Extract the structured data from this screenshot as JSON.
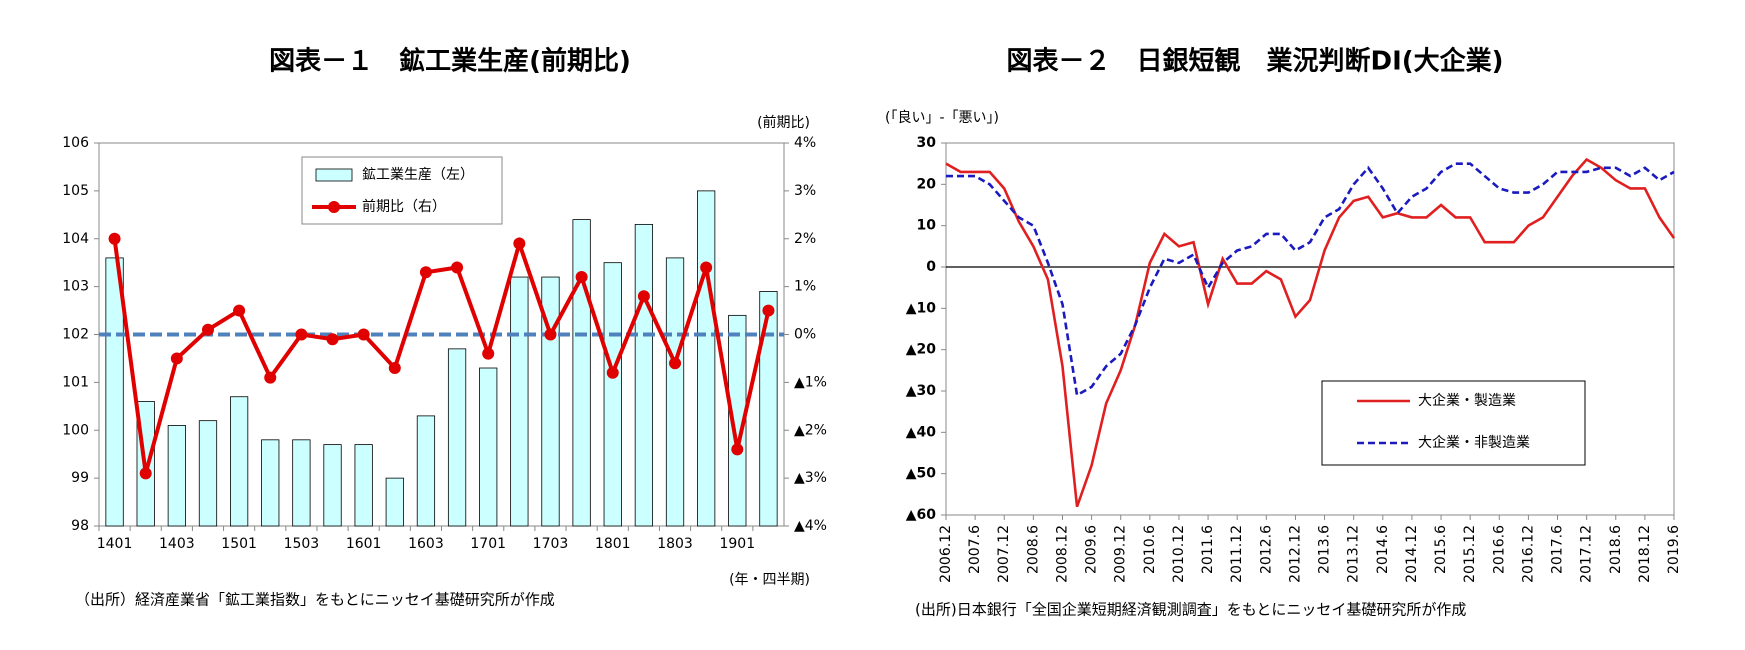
{
  "chart_data": [
    {
      "type": "combo",
      "title": "図表－１　鉱工業生産(前期比)",
      "y2_label": "(前期比)",
      "x_label": "(年・四半期)",
      "note": "（出所）経済産業省「鉱工業指数」をもとにニッセイ基礎研究所が作成",
      "categories": [
        "1401",
        null,
        "1403",
        null,
        "1501",
        null,
        "1503",
        null,
        "1601",
        null,
        "1603",
        null,
        "1701",
        null,
        "1703",
        null,
        "1801",
        null,
        "1803",
        null,
        "1901",
        null
      ],
      "series": [
        {
          "name": "鉱工業生産（左）",
          "type": "bar",
          "color": "#ccffff",
          "axis": "y",
          "values": [
            103.6,
            100.6,
            100.1,
            100.2,
            100.7,
            99.8,
            99.8,
            99.7,
            99.7,
            99.0,
            100.3,
            101.7,
            101.3,
            103.2,
            103.2,
            104.4,
            103.5,
            104.3,
            103.6,
            105.0,
            102.4,
            102.9
          ]
        },
        {
          "name": "前期比（右）",
          "type": "line",
          "color": "#e00000",
          "axis": "y2",
          "values": [
            2.0,
            -2.9,
            -0.5,
            0.1,
            0.5,
            -0.9,
            0.0,
            -0.1,
            0.0,
            -0.7,
            1.3,
            1.4,
            -0.4,
            1.9,
            0.0,
            1.2,
            -0.8,
            0.8,
            -0.6,
            1.4,
            -2.4,
            0.5
          ]
        }
      ],
      "ylim": [
        98,
        106
      ],
      "yticks": [
        98,
        99,
        100,
        101,
        102,
        103,
        104,
        105,
        106
      ],
      "y2lim": [
        -4,
        4
      ],
      "y2ticks": [
        {
          "value": -4,
          "label": "▲4%"
        },
        {
          "value": -3,
          "label": "▲3%"
        },
        {
          "value": -2,
          "label": "▲2%"
        },
        {
          "value": -1,
          "label": "▲1%"
        },
        {
          "value": 0,
          "label": "0%"
        },
        {
          "value": 1,
          "label": "1%"
        },
        {
          "value": 2,
          "label": "2%"
        },
        {
          "value": 3,
          "label": "3%"
        },
        {
          "value": 4,
          "label": "4%"
        }
      ],
      "reference_line": {
        "axis": "y2",
        "value": 0,
        "color": "#4f81bd"
      },
      "legend": "upper center"
    },
    {
      "type": "line",
      "title": "図表－２　日銀短観　業況判断DI(大企業)",
      "y_label": "(「良い」-「悪い」)",
      "note": "(出所)日本銀行「全国企業短期経済観測調査」をもとにニッセイ基礎研究所が作成",
      "categories": [
        "2006.12",
        null,
        "2007.6",
        null,
        "2007.12",
        null,
        "2008.6",
        null,
        "2008.12",
        null,
        "2009.6",
        null,
        "2009.12",
        null,
        "2010.6",
        null,
        "2010.12",
        null,
        "2011.6",
        null,
        "2011.12",
        null,
        "2012.6",
        null,
        "2012.12",
        null,
        "2013.6",
        null,
        "2013.12",
        null,
        "2014.6",
        null,
        "2014.12",
        null,
        "2015.6",
        null,
        "2015.12",
        null,
        "2016.6",
        null,
        "2016.12",
        null,
        "2017.6",
        null,
        "2017.12",
        null,
        "2018.6",
        null,
        "2018.12",
        null,
        "2019.6"
      ],
      "series": [
        {
          "name": "大企業・製造業",
          "color": "#e02020",
          "dashed": false,
          "values": [
            25,
            23,
            23,
            23,
            19,
            11,
            5,
            -3,
            -24,
            -58,
            -48,
            -33,
            -25,
            -14,
            1,
            8,
            5,
            6,
            -9,
            2,
            -4,
            -4,
            -1,
            -3,
            -12,
            -8,
            4,
            12,
            16,
            17,
            12,
            13,
            12,
            12,
            15,
            12,
            12,
            6,
            6,
            6,
            10,
            12,
            17,
            22,
            26,
            24,
            21,
            19,
            19,
            12,
            7
          ]
        },
        {
          "name": "大企業・非製造業",
          "color": "#1a1abf",
          "dashed": true,
          "values": [
            22,
            22,
            22,
            20,
            16,
            12,
            10,
            1,
            -9,
            -31,
            -29,
            -24,
            -21,
            -14,
            -5,
            2,
            1,
            3,
            -5,
            1,
            4,
            5,
            8,
            8,
            4,
            6,
            12,
            14,
            20,
            24,
            19,
            13,
            17,
            19,
            23,
            25,
            25,
            22,
            19,
            18,
            18,
            20,
            23,
            23,
            23,
            24,
            24,
            22,
            24,
            21,
            23
          ]
        }
      ],
      "ylim": [
        -60,
        30
      ],
      "yticks": [
        {
          "value": -60,
          "label": "▲60"
        },
        {
          "value": -50,
          "label": "▲50"
        },
        {
          "value": -40,
          "label": "▲40"
        },
        {
          "value": -30,
          "label": "▲30"
        },
        {
          "value": -20,
          "label": "▲20"
        },
        {
          "value": -10,
          "label": "▲10"
        },
        0,
        10,
        20,
        30
      ],
      "zero_line": true,
      "legend": "lower right"
    }
  ]
}
